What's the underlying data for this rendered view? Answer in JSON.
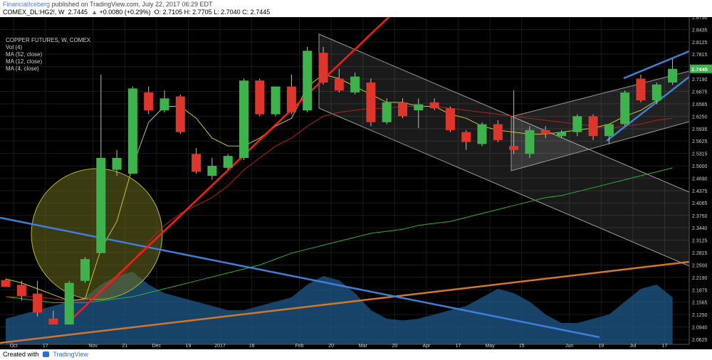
{
  "header": {
    "author": "FinancialIceberg",
    "published_text": "published on TradingView.com, July 22, 2017 06:29 EDT",
    "symbol": "COMEX_DL:HG2!, W",
    "last": "2.7445",
    "change": "+0.0080 (+0.29%)",
    "ohlc": "O: 2.7105  H: 2.7705  L: 2.7040  C: 2.7445"
  },
  "legend": {
    "title": "COPPER FUTURES, W, COMEX",
    "lines": [
      "Vol (4)",
      "MA (52, close)",
      "MA (12, close)",
      "MA (4, close)"
    ]
  },
  "footer": {
    "created_with": "Created with",
    "brand": "TradingView"
  },
  "colors": {
    "up": "#3cb44b",
    "down": "#e0352b",
    "bg": "#000000",
    "red_trend": "#ff1a1a",
    "blue_trend": "#3f7fd8",
    "orange_trend": "#d2762a",
    "volume_area": "#1f5a8c",
    "ma4": "#c8c829",
    "ma12": "#b02020",
    "ma52": "#2bb32b",
    "circle_fill": "#6b6b1f"
  },
  "chart_data": {
    "type": "candlestick",
    "title": "COPPER FUTURES, W, COMEX",
    "ylim": [
      2.05,
      2.875
    ],
    "y_ticks": [
      "2.8750",
      "2.8435",
      "2.8125",
      "2.7815",
      "2.7500",
      "2.7190",
      "2.6875",
      "2.6565",
      "2.6250",
      "2.5935",
      "2.5625",
      "2.5315",
      "2.5000",
      "2.4690",
      "2.4375",
      "2.4065",
      "2.3750",
      "2.3440",
      "2.3125",
      "2.2815",
      "2.2500",
      "2.2190",
      "2.1875",
      "2.1565",
      "2.1250",
      "2.0940",
      "2.0625"
    ],
    "x_labels": [
      "Oct",
      "17",
      "Nov",
      "21",
      "Dec",
      "19",
      "2017",
      "16",
      "Feb",
      "20",
      "Mar",
      "20",
      "Apr",
      "17",
      "May",
      "15",
      "Jun",
      "19",
      "Jul",
      "17"
    ],
    "x_label_candle_index": [
      0.5,
      2.5,
      5.5,
      7.5,
      9.5,
      11.5,
      13.5,
      15.5,
      18.5,
      20.5,
      22.5,
      24.5,
      26.5,
      28.5,
      30.5,
      32.5,
      35.5,
      37.5,
      39.5,
      41.5
    ],
    "current_price": "2.7445",
    "candles": [
      {
        "o": 2.212,
        "h": 2.215,
        "l": 2.195,
        "c": 2.195
      },
      {
        "o": 2.2,
        "h": 2.21,
        "l": 2.16,
        "c": 2.172
      },
      {
        "o": 2.178,
        "h": 2.21,
        "l": 2.12,
        "c": 2.13
      },
      {
        "o": 2.115,
        "h": 2.135,
        "l": 2.1,
        "c": 2.1
      },
      {
        "o": 2.1,
        "h": 2.21,
        "l": 2.1,
        "c": 2.205
      },
      {
        "o": 2.21,
        "h": 2.27,
        "l": 2.205,
        "c": 2.265
      },
      {
        "o": 2.28,
        "h": 2.73,
        "l": 2.28,
        "c": 2.52
      },
      {
        "o": 2.49,
        "h": 2.54,
        "l": 2.475,
        "c": 2.52
      },
      {
        "o": 2.48,
        "h": 2.7,
        "l": 2.48,
        "c": 2.695
      },
      {
        "o": 2.685,
        "h": 2.7,
        "l": 2.63,
        "c": 2.64
      },
      {
        "o": 2.64,
        "h": 2.69,
        "l": 2.635,
        "c": 2.67
      },
      {
        "o": 2.675,
        "h": 2.68,
        "l": 2.58,
        "c": 2.585
      },
      {
        "o": 2.53,
        "h": 2.545,
        "l": 2.48,
        "c": 2.485
      },
      {
        "o": 2.475,
        "h": 2.52,
        "l": 2.465,
        "c": 2.5
      },
      {
        "o": 2.495,
        "h": 2.53,
        "l": 2.49,
        "c": 2.525
      },
      {
        "o": 2.52,
        "h": 2.72,
        "l": 2.515,
        "c": 2.715
      },
      {
        "o": 2.715,
        "h": 2.72,
        "l": 2.625,
        "c": 2.63
      },
      {
        "o": 2.63,
        "h": 2.7,
        "l": 2.625,
        "c": 2.7
      },
      {
        "o": 2.7,
        "h": 2.73,
        "l": 2.63,
        "c": 2.635
      },
      {
        "o": 2.64,
        "h": 2.8,
        "l": 2.635,
        "c": 2.79
      },
      {
        "o": 2.785,
        "h": 2.8,
        "l": 2.705,
        "c": 2.71
      },
      {
        "o": 2.72,
        "h": 2.745,
        "l": 2.685,
        "c": 2.69
      },
      {
        "o": 2.685,
        "h": 2.735,
        "l": 2.68,
        "c": 2.725
      },
      {
        "o": 2.71,
        "h": 2.72,
        "l": 2.6,
        "c": 2.61
      },
      {
        "o": 2.61,
        "h": 2.67,
        "l": 2.605,
        "c": 2.66
      },
      {
        "o": 2.66,
        "h": 2.67,
        "l": 2.62,
        "c": 2.625
      },
      {
        "o": 2.64,
        "h": 2.67,
        "l": 2.595,
        "c": 2.655
      },
      {
        "o": 2.66,
        "h": 2.67,
        "l": 2.64,
        "c": 2.645
      },
      {
        "o": 2.645,
        "h": 2.65,
        "l": 2.585,
        "c": 2.59
      },
      {
        "o": 2.585,
        "h": 2.59,
        "l": 2.54,
        "c": 2.56
      },
      {
        "o": 2.555,
        "h": 2.61,
        "l": 2.55,
        "c": 2.605
      },
      {
        "o": 2.605,
        "h": 2.615,
        "l": 2.56,
        "c": 2.565
      },
      {
        "o": 2.55,
        "h": 2.69,
        "l": 2.53,
        "c": 2.54
      },
      {
        "o": 2.53,
        "h": 2.6,
        "l": 2.52,
        "c": 2.59
      },
      {
        "o": 2.59,
        "h": 2.6,
        "l": 2.57,
        "c": 2.58
      },
      {
        "o": 2.575,
        "h": 2.59,
        "l": 2.57,
        "c": 2.585
      },
      {
        "o": 2.585,
        "h": 2.63,
        "l": 2.575,
        "c": 2.625
      },
      {
        "o": 2.625,
        "h": 2.63,
        "l": 2.565,
        "c": 2.575
      },
      {
        "o": 2.575,
        "h": 2.605,
        "l": 2.555,
        "c": 2.605
      },
      {
        "o": 2.605,
        "h": 2.69,
        "l": 2.6,
        "c": 2.685
      },
      {
        "o": 2.72,
        "h": 2.73,
        "l": 2.66,
        "c": 2.665
      },
      {
        "o": 2.665,
        "h": 2.71,
        "l": 2.655,
        "c": 2.705
      },
      {
        "o": 2.71,
        "h": 2.77,
        "l": 2.704,
        "c": 2.7445
      }
    ],
    "ma4": [
      2.215,
      2.205,
      2.19,
      2.175,
      2.16,
      2.165,
      2.29,
      2.36,
      2.5,
      2.61,
      2.65,
      2.65,
      2.62,
      2.57,
      2.55,
      2.55,
      2.57,
      2.6,
      2.62,
      2.7,
      2.73,
      2.72,
      2.7,
      2.68,
      2.66,
      2.66,
      2.65,
      2.65,
      2.63,
      2.62,
      2.6,
      2.59,
      2.585,
      2.58,
      2.58,
      2.585,
      2.59,
      2.595,
      2.605,
      2.625,
      2.64,
      2.665,
      2.69
    ],
    "ma12": [
      2.17,
      2.17,
      2.17,
      2.165,
      2.16,
      2.16,
      2.18,
      2.21,
      2.26,
      2.31,
      2.35,
      2.38,
      2.4,
      2.42,
      2.45,
      2.49,
      2.52,
      2.55,
      2.57,
      2.6,
      2.625,
      2.635,
      2.64,
      2.645,
      2.645,
      2.65,
      2.65,
      2.65,
      2.645,
      2.64,
      2.635,
      2.63,
      2.625,
      2.62,
      2.615,
      2.61,
      2.605,
      2.6,
      2.595,
      2.6,
      2.605,
      2.615,
      2.62
    ],
    "ma52": [
      2.17,
      2.165,
      2.16,
      2.155,
      2.155,
      2.155,
      2.16,
      2.165,
      2.17,
      2.18,
      2.19,
      2.2,
      2.21,
      2.22,
      2.23,
      2.24,
      2.25,
      2.265,
      2.28,
      2.29,
      2.3,
      2.31,
      2.32,
      2.33,
      2.335,
      2.34,
      2.35,
      2.355,
      2.36,
      2.37,
      2.38,
      2.39,
      2.4,
      2.41,
      2.42,
      2.425,
      2.435,
      2.445,
      2.455,
      2.465,
      2.475,
      2.485,
      2.495
    ],
    "volume": [
      0.3,
      0.35,
      0.4,
      0.45,
      0.5,
      0.55,
      0.7,
      0.8,
      0.85,
      0.7,
      0.6,
      0.55,
      0.5,
      0.45,
      0.4,
      0.4,
      0.45,
      0.5,
      0.55,
      0.7,
      0.8,
      0.75,
      0.6,
      0.4,
      0.3,
      0.28,
      0.3,
      0.35,
      0.4,
      0.45,
      0.55,
      0.65,
      0.6,
      0.5,
      0.35,
      0.25,
      0.25,
      0.3,
      0.35,
      0.5,
      0.65,
      0.7,
      0.55
    ]
  }
}
